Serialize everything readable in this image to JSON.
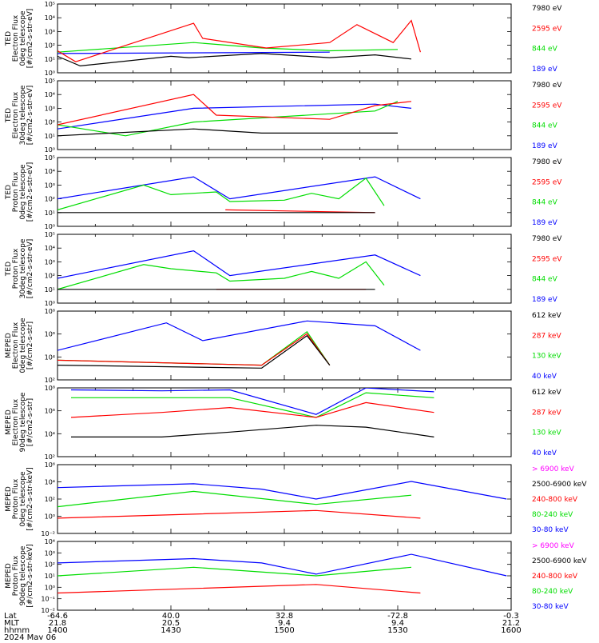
{
  "chart_data": [
    {
      "type": "line",
      "ylabel": [
        "TED",
        "Electron Flux",
        "0deg telescope",
        "[#/cm2-s-str-eV]"
      ],
      "y_ticks": [
        "10⁵",
        "10⁴",
        "10³",
        "10²",
        "10¹",
        "10⁰"
      ],
      "ylim_exp": [
        0,
        5
      ],
      "series": [
        {
          "name": "7980 eV",
          "color": "#000000",
          "values": [
            [
              0,
              1.2
            ],
            [
              5,
              0.5
            ],
            [
              25,
              1.2
            ],
            [
              29,
              1.1
            ],
            [
              45,
              1.4
            ],
            [
              60,
              1.1
            ],
            [
              70,
              1.3
            ],
            [
              78,
              1.0
            ]
          ]
        },
        {
          "name": "2595 eV",
          "color": "#ff0000",
          "values": [
            [
              0,
              1.6
            ],
            [
              4,
              0.8
            ],
            [
              30,
              3.6
            ],
            [
              32,
              2.5
            ],
            [
              46,
              1.8
            ],
            [
              60,
              2.2
            ],
            [
              66,
              3.5
            ],
            [
              74,
              2.2
            ],
            [
              78,
              3.8
            ],
            [
              80,
              1.5
            ]
          ]
        },
        {
          "name": "844 eV",
          "color": "#00dd00",
          "values": [
            [
              0,
              1.5
            ],
            [
              30,
              2.2
            ],
            [
              45,
              1.8
            ],
            [
              60,
              1.6
            ],
            [
              75,
              1.7
            ]
          ]
        },
        {
          "name": "189 eV",
          "color": "#0000ff",
          "values": [
            [
              0,
              1.4
            ],
            [
              60,
              1.5
            ]
          ]
        }
      ]
    },
    {
      "type": "line",
      "ylabel": [
        "TED",
        "Electron Flux",
        "30deg telescope",
        "[#/cm2-s-str-eV]"
      ],
      "y_ticks": [
        "10⁵",
        "10⁴",
        "10³",
        "10²",
        "10¹",
        "10⁰"
      ],
      "ylim_exp": [
        0,
        5
      ],
      "series": [
        {
          "name": "7980 eV",
          "color": "#000000",
          "values": [
            [
              0,
              1.0
            ],
            [
              30,
              1.5
            ],
            [
              45,
              1.2
            ],
            [
              60,
              1.2
            ],
            [
              75,
              1.2
            ]
          ]
        },
        {
          "name": "2595 eV",
          "color": "#ff0000",
          "values": [
            [
              0,
              1.8
            ],
            [
              30,
              4.0
            ],
            [
              35,
              2.5
            ],
            [
              60,
              2.2
            ],
            [
              70,
              3.2
            ],
            [
              78,
              3.5
            ]
          ]
        },
        {
          "name": "844 eV",
          "color": "#00dd00",
          "values": [
            [
              0,
              1.8
            ],
            [
              15,
              1.0
            ],
            [
              30,
              2.0
            ],
            [
              70,
              2.8
            ],
            [
              75,
              3.5
            ]
          ]
        },
        {
          "name": "189 eV",
          "color": "#0000ff",
          "values": [
            [
              0,
              1.5
            ],
            [
              30,
              3.0
            ],
            [
              70,
              3.3
            ],
            [
              78,
              3.0
            ]
          ]
        }
      ]
    },
    {
      "type": "line",
      "ylabel": [
        "TED",
        "Proton Flux",
        "0deg telescope",
        "[#/cm2-s-str-eV]"
      ],
      "y_ticks": [
        "10⁵",
        "10⁴",
        "10³",
        "10²",
        "10¹",
        "10⁰"
      ],
      "ylim_exp": [
        0,
        5
      ],
      "series": [
        {
          "name": "7980 eV",
          "color": "#000000",
          "values": [
            [
              0,
              1.0
            ],
            [
              37,
              1.0
            ],
            [
              70,
              1.0
            ]
          ]
        },
        {
          "name": "2595 eV",
          "color": "#ff0000",
          "values": [
            [
              37,
              1.2
            ],
            [
              70,
              1.0
            ]
          ]
        },
        {
          "name": "844 eV",
          "color": "#00dd00",
          "values": [
            [
              0,
              1.2
            ],
            [
              19,
              3.0
            ],
            [
              25,
              2.3
            ],
            [
              35,
              2.5
            ],
            [
              38,
              1.8
            ],
            [
              50,
              1.9
            ],
            [
              56,
              2.4
            ],
            [
              62,
              2.0
            ],
            [
              68,
              3.5
            ],
            [
              72,
              1.5
            ]
          ]
        },
        {
          "name": "189 eV",
          "color": "#0000ff",
          "values": [
            [
              0,
              2.0
            ],
            [
              30,
              3.6
            ],
            [
              38,
              2.0
            ],
            [
              70,
              3.6
            ],
            [
              80,
              2.0
            ]
          ]
        }
      ]
    },
    {
      "type": "line",
      "ylabel": [
        "TED",
        "Proton Flux",
        "30deg telescope",
        "[#/cm2-s-str-eV]"
      ],
      "y_ticks": [
        "10⁵",
        "10⁴",
        "10³",
        "10²",
        "10¹",
        "10⁰"
      ],
      "ylim_exp": [
        0,
        5
      ],
      "series": [
        {
          "name": "7980 eV",
          "color": "#000000",
          "values": [
            [
              0,
              1.0
            ],
            [
              35,
              1.0
            ],
            [
              70,
              1.0
            ]
          ]
        },
        {
          "name": "2595 eV",
          "color": "#ff0000",
          "values": [
            [
              35,
              1.0
            ],
            [
              68,
              1.0
            ]
          ]
        },
        {
          "name": "844 eV",
          "color": "#00dd00",
          "values": [
            [
              0,
              1.0
            ],
            [
              19,
              2.8
            ],
            [
              25,
              2.5
            ],
            [
              35,
              2.2
            ],
            [
              38,
              1.6
            ],
            [
              50,
              1.8
            ],
            [
              56,
              2.3
            ],
            [
              62,
              1.8
            ],
            [
              68,
              3.0
            ],
            [
              72,
              1.3
            ]
          ]
        },
        {
          "name": "189 eV",
          "color": "#0000ff",
          "values": [
            [
              0,
              1.8
            ],
            [
              30,
              3.8
            ],
            [
              38,
              2.0
            ],
            [
              70,
              3.5
            ],
            [
              80,
              2.0
            ]
          ]
        }
      ]
    },
    {
      "type": "line",
      "ylabel": [
        "MEPED",
        "Electron Flux",
        "0deg telescope",
        "[#/cm2-s-str]"
      ],
      "y_ticks": [
        "10⁸",
        "10⁶",
        "10⁴",
        "10²"
      ],
      "ylim_exp": [
        1,
        8
      ],
      "series": [
        {
          "name": "612 keV",
          "color": "#000000",
          "values": [
            [
              0,
              2.5
            ],
            [
              45,
              2.2
            ],
            [
              55,
              5.5
            ],
            [
              60,
              2.5
            ]
          ]
        },
        {
          "name": "287 keV",
          "color": "#ff0000",
          "values": [
            [
              0,
              3.0
            ],
            [
              45,
              2.5
            ],
            [
              55,
              5.7
            ],
            [
              60,
              2.5
            ]
          ]
        },
        {
          "name": "130 keV",
          "color": "#00dd00",
          "values": [
            [
              0,
              3.0
            ],
            [
              45,
              2.5
            ],
            [
              55,
              5.9
            ],
            [
              60,
              2.5
            ]
          ]
        },
        {
          "name": "40 keV",
          "color": "#0000ff",
          "values": [
            [
              0,
              4.0
            ],
            [
              24,
              6.8
            ],
            [
              32,
              5.0
            ],
            [
              55,
              7.0
            ],
            [
              70,
              6.5
            ],
            [
              80,
              4.0
            ]
          ]
        }
      ]
    },
    {
      "type": "line",
      "ylabel": [
        "MEPED",
        "Electron Flux",
        "90deg telescope",
        "[#/cm2-s-str]"
      ],
      "y_ticks": [
        "10⁸",
        "10⁶",
        "10⁴",
        "10²"
      ],
      "ylim_exp": [
        1,
        8
      ],
      "series": [
        {
          "name": "612 keV",
          "color": "#000000",
          "values": [
            [
              3,
              3.0
            ],
            [
              23,
              3.0
            ],
            [
              38,
              3.5
            ],
            [
              57,
              4.2
            ],
            [
              68,
              4.0
            ],
            [
              83,
              3.0
            ]
          ]
        },
        {
          "name": "287 keV",
          "color": "#ff0000",
          "values": [
            [
              3,
              5.0
            ],
            [
              23,
              5.5
            ],
            [
              38,
              6.0
            ],
            [
              57,
              5.0
            ],
            [
              68,
              6.5
            ],
            [
              83,
              5.5
            ]
          ]
        },
        {
          "name": "130 keV",
          "color": "#00dd00",
          "values": [
            [
              3,
              7.0
            ],
            [
              23,
              7.0
            ],
            [
              38,
              7.0
            ],
            [
              57,
              5.0
            ],
            [
              68,
              7.5
            ],
            [
              83,
              7.0
            ]
          ]
        },
        {
          "name": "40 keV",
          "color": "#0000ff",
          "values": [
            [
              3,
              7.8
            ],
            [
              23,
              7.7
            ],
            [
              38,
              7.8
            ],
            [
              57,
              5.3
            ],
            [
              68,
              8.0
            ],
            [
              83,
              7.6
            ]
          ]
        }
      ]
    },
    {
      "type": "line",
      "ylabel": [
        "MEPED",
        "Proton Flux",
        "0deg telescope",
        "[#/cm2-s-str-keV]"
      ],
      "y_ticks": [
        "10⁶",
        "10⁴",
        "10²",
        "10⁰",
        "10⁻²"
      ],
      "ylim_exp": [
        -3,
        6
      ],
      "series": [
        {
          "name": "> 6900 keV",
          "color": "#ff00ff",
          "values": [
            [
              57,
              -1.8
            ]
          ]
        },
        {
          "name": "2500-6900 keV",
          "color": "#000000",
          "values": [
            [
              57,
              -1.0
            ]
          ]
        },
        {
          "name": "240-800 keV",
          "color": "#ff0000",
          "values": [
            [
              0,
              -1.0
            ],
            [
              57,
              0.0
            ],
            [
              80,
              -1.0
            ]
          ]
        },
        {
          "name": "80-240 keV",
          "color": "#00dd00",
          "values": [
            [
              0,
              0.5
            ],
            [
              30,
              2.5
            ],
            [
              57,
              0.8
            ],
            [
              78,
              2.0
            ]
          ]
        },
        {
          "name": "30-80 keV",
          "color": "#0000ff",
          "values": [
            [
              0,
              3.0
            ],
            [
              30,
              3.5
            ],
            [
              45,
              2.8
            ],
            [
              57,
              1.5
            ],
            [
              78,
              3.8
            ],
            [
              99,
              1.5
            ]
          ]
        }
      ]
    },
    {
      "type": "line",
      "ylabel": [
        "MEPED",
        "Proton Flux",
        "90deg telescope",
        "[#/cm2-s-str-keV]"
      ],
      "y_ticks": [
        "10⁴",
        "10³",
        "10²",
        "10¹",
        "10⁰",
        "10⁻¹",
        "10⁻²"
      ],
      "ylim_exp": [
        -3,
        5
      ],
      "series": [
        {
          "name": "> 6900 keV",
          "color": "#ff00ff",
          "values": [
            [
              57,
              -1.7
            ]
          ]
        },
        {
          "name": "2500-6900 keV",
          "color": "#000000",
          "values": [
            [
              57,
              -1.0
            ]
          ]
        },
        {
          "name": "240-800 keV",
          "color": "#ff0000",
          "values": [
            [
              0,
              -1.0
            ],
            [
              57,
              0.0
            ],
            [
              80,
              -1.0
            ]
          ]
        },
        {
          "name": "80-240 keV",
          "color": "#00dd00",
          "values": [
            [
              0,
              1.0
            ],
            [
              30,
              2.0
            ],
            [
              57,
              1.0
            ],
            [
              78,
              2.0
            ]
          ]
        },
        {
          "name": "30-80 keV",
          "color": "#0000ff",
          "values": [
            [
              0,
              2.5
            ],
            [
              30,
              3.0
            ],
            [
              45,
              2.5
            ],
            [
              57,
              1.2
            ],
            [
              78,
              3.5
            ],
            [
              99,
              1.0
            ]
          ]
        }
      ]
    }
  ],
  "x_axis": {
    "rows": [
      {
        "label": "Lat",
        "values": [
          "-64.6",
          "40.0",
          "32.8",
          "-72.8",
          "-0.3"
        ]
      },
      {
        "label": "MLT",
        "values": [
          "21.8",
          "20.5",
          "9.4",
          "9.4",
          "21.2"
        ]
      },
      {
        "label": "hhmm",
        "values": [
          "1400",
          "1430",
          "1500",
          "1530",
          "1600"
        ]
      }
    ],
    "date": "2024 May 06"
  }
}
